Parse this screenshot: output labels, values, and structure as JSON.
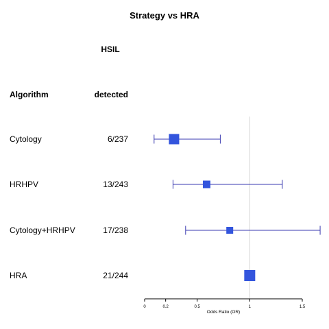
{
  "chart_data": {
    "type": "forest",
    "title": "Strategy vs HRA",
    "column_headers": {
      "label": "Algorithm",
      "count_line1": "HSIL",
      "count_line2": "detected"
    },
    "rows": [
      {
        "label": "Cytology",
        "count": "6/237",
        "or": 0.28,
        "lower": 0.09,
        "upper": 0.72
      },
      {
        "label": "HRHPV",
        "count": "13/243",
        "or": 0.59,
        "lower": 0.27,
        "upper": 1.31
      },
      {
        "label": "Cytology+HRHPV",
        "count": "17/238",
        "or": 0.81,
        "lower": 0.39,
        "upper": 1.67
      },
      {
        "label": "HRA",
        "count": "21/244",
        "or": 1.0
      }
    ],
    "xaxis": {
      "label": "Odds Ratio (OR)",
      "ticks": [
        0,
        0.2,
        0.5,
        1,
        1.5
      ],
      "tick_labels": [
        "0",
        "0.2",
        "0.5",
        "1",
        "1.5"
      ],
      "range": [
        0,
        1.5
      ]
    },
    "reference_line": 1,
    "colors": {
      "marker": "#3355dd",
      "ci_line": "#3a3ab0",
      "reference": "#d8d8d8",
      "axis": "#000000"
    }
  }
}
